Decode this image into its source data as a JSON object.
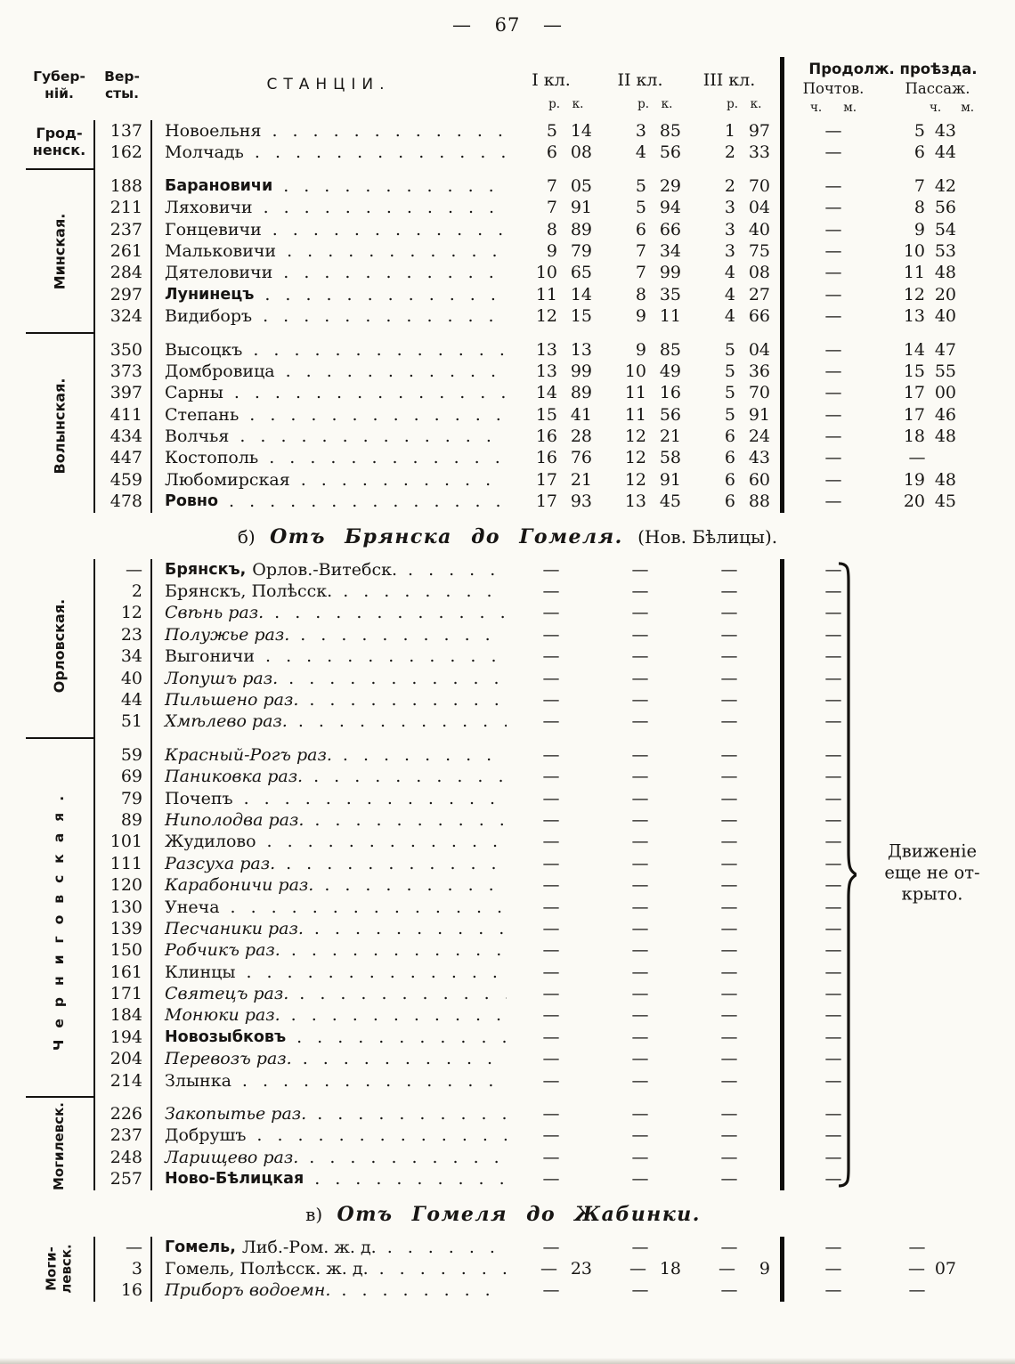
{
  "page_number": "—  67  —",
  "header": {
    "gub": [
      "Губер-",
      "ній."
    ],
    "versts": [
      "Вер-",
      "сты."
    ],
    "stations": "СТАНЦІИ.",
    "classes": [
      "I кл.",
      "II кл.",
      "III кл."
    ],
    "rk": [
      "р.",
      "к."
    ],
    "duration": "Продолж. проѣзда.",
    "post": "Почтов.",
    "pass": "Пассаж.",
    "chm": [
      "ч.",
      "м."
    ]
  },
  "sections": {
    "b": {
      "prefix": "б)",
      "title": "Отъ Брянска до Гомеля.",
      "suffix": "(Нов. Бѣлицы)."
    },
    "v": {
      "prefix": "в)",
      "title": "Отъ Гомеля до Жабинки.",
      "suffix": ""
    }
  },
  "brace_note": [
    "Движеніе",
    "еще не от-",
    "крыто."
  ],
  "tables": [
    {
      "id": "t1",
      "groups": [
        {
          "province": {
            "lines": [
              "Грод-",
              "ненск."
            ],
            "dir": "h"
          },
          "rows": [
            {
              "v": "137",
              "s": "Новоельня",
              "st": "n",
              "f": [
                [
                  "5",
                  "14"
                ],
                [
                  "3",
                  "85"
                ],
                [
                  "1",
                  "97"
                ]
              ],
              "po": "—",
              "pa": [
                "5",
                "43"
              ]
            },
            {
              "v": "162",
              "s": "Молчадь",
              "st": "n",
              "f": [
                [
                  "6",
                  "08"
                ],
                [
                  "4",
                  "56"
                ],
                [
                  "2",
                  "33"
                ]
              ],
              "po": "—",
              "pa": [
                "6",
                "44"
              ]
            }
          ]
        },
        {
          "province": {
            "lines": [
              "Минская."
            ],
            "dir": "v"
          },
          "rows": [
            {
              "v": "188",
              "s": "Барановичи",
              "st": "b",
              "f": [
                [
                  "7",
                  "05"
                ],
                [
                  "5",
                  "29"
                ],
                [
                  "2",
                  "70"
                ]
              ],
              "po": "—",
              "pa": [
                "7",
                "42"
              ]
            },
            {
              "v": "211",
              "s": "Ляховичи",
              "st": "n",
              "f": [
                [
                  "7",
                  "91"
                ],
                [
                  "5",
                  "94"
                ],
                [
                  "3",
                  "04"
                ]
              ],
              "po": "—",
              "pa": [
                "8",
                "56"
              ]
            },
            {
              "v": "237",
              "s": "Гонцевичи",
              "st": "n",
              "f": [
                [
                  "8",
                  "89"
                ],
                [
                  "6",
                  "66"
                ],
                [
                  "3",
                  "40"
                ]
              ],
              "po": "—",
              "pa": [
                "9",
                "54"
              ]
            },
            {
              "v": "261",
              "s": "Мальковичи",
              "st": "n",
              "f": [
                [
                  "9",
                  "79"
                ],
                [
                  "7",
                  "34"
                ],
                [
                  "3",
                  "75"
                ]
              ],
              "po": "—",
              "pa": [
                "10",
                "53"
              ]
            },
            {
              "v": "284",
              "s": "Дятеловичи",
              "st": "n",
              "f": [
                [
                  "10",
                  "65"
                ],
                [
                  "7",
                  "99"
                ],
                [
                  "4",
                  "08"
                ]
              ],
              "po": "—",
              "pa": [
                "11",
                "48"
              ]
            },
            {
              "v": "297",
              "s": "Лунинецъ",
              "st": "b",
              "f": [
                [
                  "11",
                  "14"
                ],
                [
                  "8",
                  "35"
                ],
                [
                  "4",
                  "27"
                ]
              ],
              "po": "—",
              "pa": [
                "12",
                "20"
              ]
            },
            {
              "v": "324",
              "s": "Видиборъ",
              "st": "n",
              "f": [
                [
                  "12",
                  "15"
                ],
                [
                  "9",
                  "11"
                ],
                [
                  "4",
                  "66"
                ]
              ],
              "po": "—",
              "pa": [
                "13",
                "40"
              ]
            }
          ]
        },
        {
          "province": {
            "lines": [
              "Волынская."
            ],
            "dir": "v"
          },
          "rows": [
            {
              "v": "350",
              "s": "Высоцкъ",
              "st": "n",
              "f": [
                [
                  "13",
                  "13"
                ],
                [
                  "9",
                  "85"
                ],
                [
                  "5",
                  "04"
                ]
              ],
              "po": "—",
              "pa": [
                "14",
                "47"
              ]
            },
            {
              "v": "373",
              "s": "Домбровица",
              "st": "n",
              "f": [
                [
                  "13",
                  "99"
                ],
                [
                  "10",
                  "49"
                ],
                [
                  "5",
                  "36"
                ]
              ],
              "po": "—",
              "pa": [
                "15",
                "55"
              ]
            },
            {
              "v": "397",
              "s": "Сарны",
              "st": "n",
              "f": [
                [
                  "14",
                  "89"
                ],
                [
                  "11",
                  "16"
                ],
                [
                  "5",
                  "70"
                ]
              ],
              "po": "—",
              "pa": [
                "17",
                "00"
              ]
            },
            {
              "v": "411",
              "s": "Степань",
              "st": "n",
              "f": [
                [
                  "15",
                  "41"
                ],
                [
                  "11",
                  "56"
                ],
                [
                  "5",
                  "91"
                ]
              ],
              "po": "—",
              "pa": [
                "17",
                "46"
              ]
            },
            {
              "v": "434",
              "s": "Волчья",
              "st": "n",
              "f": [
                [
                  "16",
                  "28"
                ],
                [
                  "12",
                  "21"
                ],
                [
                  "6",
                  "24"
                ]
              ],
              "po": "—",
              "pa": [
                "18",
                "48"
              ]
            },
            {
              "v": "447",
              "s": "Костополь",
              "st": "n",
              "f": [
                [
                  "16",
                  "76"
                ],
                [
                  "12",
                  "58"
                ],
                [
                  "6",
                  "43"
                ]
              ],
              "po": "—",
              "pa": "—"
            },
            {
              "v": "459",
              "s": "Любомирская",
              "st": "n",
              "f": [
                [
                  "17",
                  "21"
                ],
                [
                  "12",
                  "91"
                ],
                [
                  "6",
                  "60"
                ]
              ],
              "po": "—",
              "pa": [
                "19",
                "48"
              ]
            },
            {
              "v": "478",
              "s": "Ровно",
              "st": "b",
              "f": [
                [
                  "17",
                  "93"
                ],
                [
                  "13",
                  "45"
                ],
                [
                  "6",
                  "88"
                ]
              ],
              "po": "—",
              "pa": [
                "20",
                "45"
              ]
            }
          ]
        }
      ]
    },
    {
      "id": "t2",
      "fares_default": [
        "—",
        "—",
        "—"
      ],
      "post_default": "—",
      "pass_default": "",
      "groups": [
        {
          "province": {
            "lines": [
              "Орловская."
            ],
            "dir": "v"
          },
          "rows": [
            {
              "v": "—",
              "s": "Брянскъ,",
              "s2": "Орлов.-Витебск.",
              "st": "b"
            },
            {
              "v": "2",
              "s": "Брянскъ, Полѣсск.",
              "st": "n"
            },
            {
              "v": "12",
              "s": "Свѣнь раз.",
              "st": "i"
            },
            {
              "v": "23",
              "s": "Полужье раз.",
              "st": "i"
            },
            {
              "v": "34",
              "s": "Выгоничи",
              "st": "n"
            },
            {
              "v": "40",
              "s": "Лопушъ раз.",
              "st": "i"
            },
            {
              "v": "44",
              "s": "Пильшено раз.",
              "st": "i"
            },
            {
              "v": "51",
              "s": "Хмѣлево раз.",
              "st": "i"
            }
          ]
        },
        {
          "province": {
            "lines": [
              "Черниговская."
            ],
            "dir": "v",
            "wide": true
          },
          "rows": [
            {
              "v": "59",
              "s": "Красный-Рогъ раз.",
              "st": "i"
            },
            {
              "v": "69",
              "s": "Паниковка раз.",
              "st": "i"
            },
            {
              "v": "79",
              "s": "Почепъ",
              "st": "n"
            },
            {
              "v": "89",
              "s": "Ниполодва раз.",
              "st": "i"
            },
            {
              "v": "101",
              "s": "Жудилово",
              "st": "n"
            },
            {
              "v": "111",
              "s": "Разсуха раз.",
              "st": "i"
            },
            {
              "v": "120",
              "s": "Карабоничи раз.",
              "st": "i"
            },
            {
              "v": "130",
              "s": "Унеча",
              "st": "n"
            },
            {
              "v": "139",
              "s": "Песчаники раз.",
              "st": "i"
            },
            {
              "v": "150",
              "s": "Робчикъ раз.",
              "st": "i"
            },
            {
              "v": "161",
              "s": "Клинцы",
              "st": "n"
            },
            {
              "v": "171",
              "s": "Святецъ раз.",
              "st": "i"
            },
            {
              "v": "184",
              "s": "Монюки раз.",
              "st": "i"
            },
            {
              "v": "194",
              "s": "Новозыбковъ",
              "st": "b"
            },
            {
              "v": "204",
              "s": "Перевозъ раз.",
              "st": "i"
            },
            {
              "v": "214",
              "s": "Злынка",
              "st": "n"
            }
          ]
        },
        {
          "province": {
            "lines": [
              "Могилевск."
            ],
            "dir": "v",
            "small": true
          },
          "rows": [
            {
              "v": "226",
              "s": "Закопытье раз.",
              "st": "i"
            },
            {
              "v": "237",
              "s": "Добрушъ",
              "st": "n"
            },
            {
              "v": "248",
              "s": "Ларищево раз.",
              "st": "i"
            },
            {
              "v": "257",
              "s": "Ново-Бѣлицкая",
              "st": "b"
            }
          ]
        }
      ]
    },
    {
      "id": "t3",
      "groups": [
        {
          "province": {
            "lines": [
              "Моги-",
              "левск."
            ],
            "dir": "v",
            "small": true
          },
          "rows": [
            {
              "v": "—",
              "s": "Гомель,",
              "s2": "Либ.-Ром. ж. д.",
              "st": "b",
              "f": [
                "—",
                "—",
                "—"
              ],
              "po": "—",
              "pa": "—"
            },
            {
              "v": "3",
              "s": "Гомель, Полѣсск. ж. д.",
              "st": "n",
              "f": [
                [
                  "—",
                  "23"
                ],
                [
                  "—",
                  "18"
                ],
                [
                  "—",
                  "9"
                ]
              ],
              "po": "—",
              "pa": [
                "—",
                "07"
              ]
            },
            {
              "v": "16",
              "s": "Приборъ водоемн.",
              "st": "i",
              "f": [
                "—",
                "—",
                "—"
              ],
              "po": "—",
              "pa": "—"
            }
          ]
        }
      ]
    }
  ]
}
